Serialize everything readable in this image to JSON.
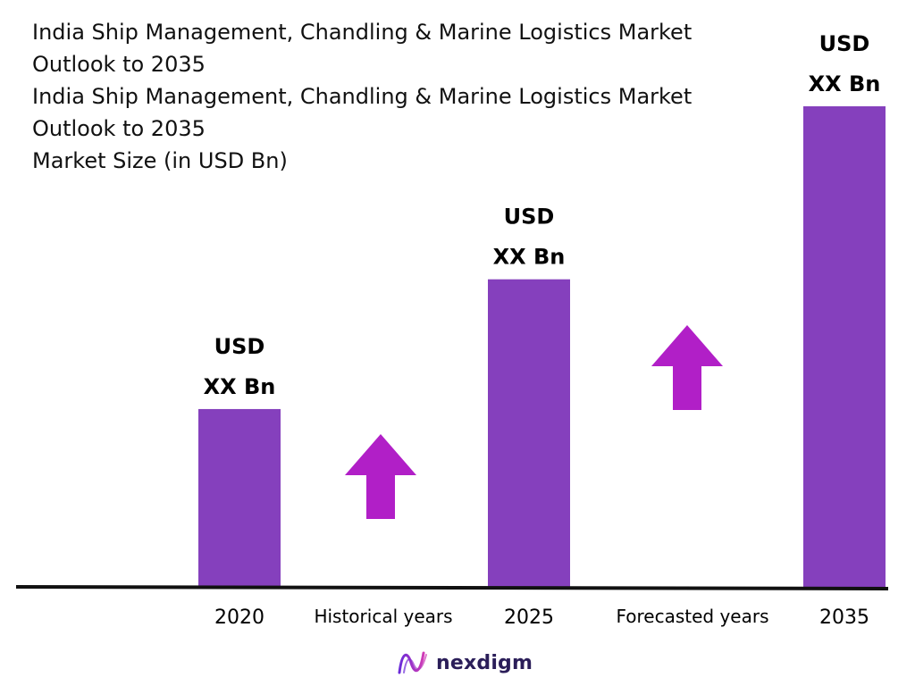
{
  "title_lines": [
    "India Ship Management, Chandling & Marine Logistics  Market",
    "Outlook to 2035",
    "India Ship Management, Chandling & Marine Logistics  Market",
    "Outlook to 2035",
    "Market Size (in USD Bn)"
  ],
  "chart_data": {
    "type": "bar",
    "categories": [
      "2020",
      "2025",
      "2035"
    ],
    "values": [
      0.37,
      0.64,
      1.0
    ],
    "value_note": "relative heights only; no numeric axis printed",
    "data_labels": [
      [
        "USD",
        "XX Bn"
      ],
      [
        "USD",
        "XX Bn"
      ],
      [
        "USD",
        "XX Bn"
      ]
    ],
    "period_labels": [
      "Historical years",
      "Forecasted years"
    ],
    "bar_color": "#8540bd",
    "arrow_color": "#b11fc7",
    "axis_color": "#111111",
    "ylim": [
      0,
      1.0
    ]
  },
  "logo": {
    "text": "nexdigm",
    "icon": "nexdigm-wave-icon",
    "color": "#2b1e59"
  }
}
